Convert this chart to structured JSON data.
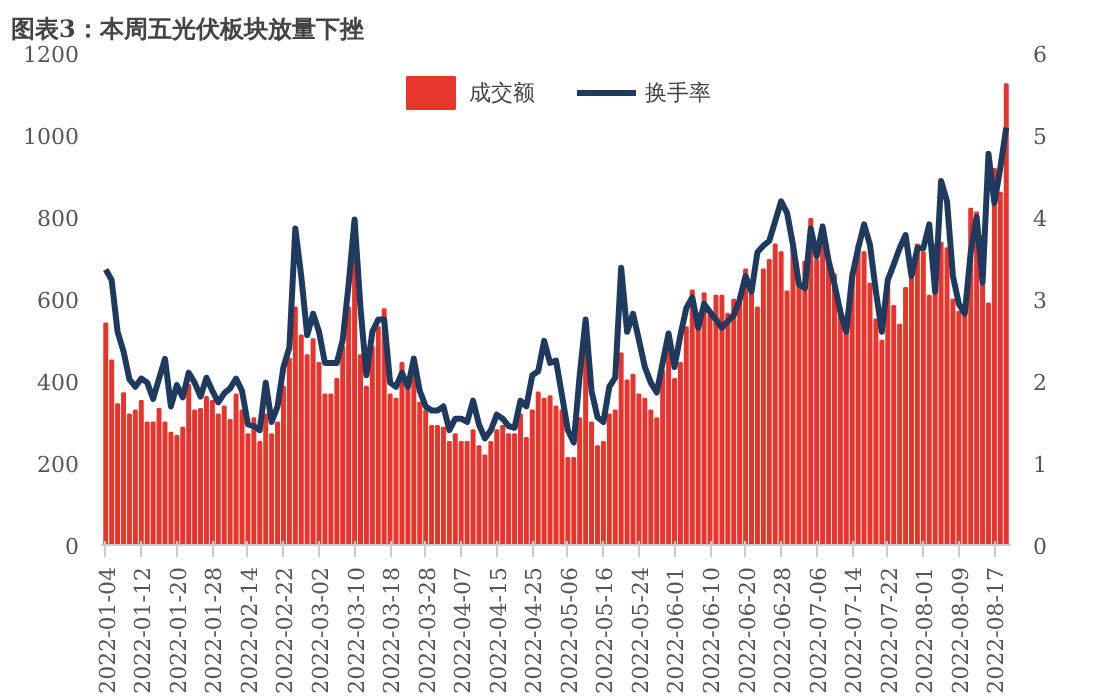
{
  "chart_data": {
    "type": "bar",
    "title": "图表3：本周五光伏板块放量下挫",
    "categories": [
      "2022-01-04",
      null,
      null,
      null,
      null,
      null,
      "2022-01-12",
      null,
      null,
      null,
      null,
      null,
      "2022-01-20",
      null,
      null,
      null,
      null,
      null,
      "2022-01-28",
      null,
      null,
      null,
      null,
      null,
      "2022-02-14",
      null,
      null,
      null,
      null,
      null,
      "2022-02-22",
      null,
      null,
      null,
      null,
      null,
      "2022-03-02",
      null,
      null,
      null,
      null,
      null,
      "2022-03-10",
      null,
      null,
      null,
      null,
      null,
      "2022-03-18",
      null,
      null,
      null,
      null,
      null,
      "2022-03-28",
      null,
      null,
      null,
      null,
      null,
      "2022-04-07",
      null,
      null,
      null,
      null,
      null,
      "2022-04-15",
      null,
      null,
      null,
      null,
      null,
      "2022-04-25",
      null,
      null,
      null,
      null,
      null,
      "2022-05-06",
      null,
      null,
      null,
      null,
      null,
      "2022-05-16",
      null,
      null,
      null,
      null,
      null,
      "2022-05-24",
      null,
      null,
      null,
      null,
      null,
      "2022-06-01",
      null,
      null,
      null,
      null,
      null,
      "2022-06-10",
      null,
      null,
      null,
      null,
      null,
      "2022-06-20",
      null,
      null,
      null,
      null,
      null,
      "2022-06-28",
      null,
      null,
      null,
      null,
      null,
      "2022-07-06",
      null,
      null,
      null,
      null,
      null,
      "2022-07-14",
      null,
      null,
      null,
      null,
      null,
      "2022-07-22",
      null,
      null,
      null,
      null,
      null,
      "2022-08-01",
      null,
      null,
      null,
      null,
      null,
      "2022-08-09",
      null,
      null,
      null,
      null,
      null,
      "2022-08-17",
      null,
      null
    ],
    "series": [
      {
        "name": "成交额",
        "color": "#e8352b",
        "values": [
          540,
          450,
          343,
          370,
          318,
          328,
          351,
          299,
          299,
          332,
          299,
          274,
          266,
          286,
          390,
          328,
          332,
          361,
          351,
          318,
          338,
          305,
          367,
          328,
          270,
          309,
          251,
          318,
          270,
          299,
          386,
          454,
          579,
          511,
          463,
          502,
          444,
          367,
          367,
          405,
          483,
          579,
          695,
          463,
          386,
          483,
          531,
          575,
          367,
          357,
          444,
          386,
          459,
          347,
          328,
          290,
          290,
          286,
          251,
          270,
          251,
          251,
          280,
          241,
          218,
          251,
          280,
          290,
          270,
          270,
          318,
          261,
          328,
          372,
          357,
          363,
          338,
          328,
          212,
          212,
          309,
          480,
          299,
          241,
          251,
          318,
          328,
          467,
          401,
          415,
          367,
          357,
          328,
          309,
          425,
          473,
          405,
          444,
          531,
          621,
          564,
          614,
          560,
          608,
          608,
          564,
          598,
          602,
          672,
          637,
          579,
          672,
          695,
          733,
          714,
          618,
          733,
          637,
          691,
          795,
          695,
          782,
          704,
          660,
          579,
          521,
          666,
          733,
          714,
          637,
          550,
          498,
          627,
          583,
          537,
          627,
          676,
          733,
          714,
          608,
          733,
          737,
          724,
          598,
          569,
          560,
          820,
          811,
          753,
          589,
          917,
          859,
          1124
        ]
      },
      {
        "name": "换手率",
        "type": "line",
        "axis": "y2",
        "color": "#1f3a5f",
        "values": [
          3.36,
          3.23,
          2.6,
          2.36,
          2.02,
          1.93,
          2.03,
          1.98,
          1.78,
          2.03,
          2.27,
          1.69,
          1.95,
          1.8,
          2.1,
          1.98,
          1.81,
          2.04,
          1.88,
          1.74,
          1.85,
          1.91,
          2.03,
          1.88,
          1.47,
          1.45,
          1.4,
          1.98,
          1.5,
          1.69,
          2.17,
          2.41,
          3.86,
          3.28,
          2.56,
          2.82,
          2.6,
          2.22,
          2.22,
          2.22,
          2.5,
          3.18,
          3.97,
          2.89,
          2.07,
          2.6,
          2.75,
          2.75,
          1.98,
          1.93,
          2.1,
          1.93,
          2.27,
          1.88,
          1.69,
          1.64,
          1.64,
          1.69,
          1.4,
          1.54,
          1.54,
          1.5,
          1.76,
          1.47,
          1.3,
          1.4,
          1.59,
          1.54,
          1.45,
          1.43,
          1.76,
          1.69,
          2.07,
          2.12,
          2.49,
          2.22,
          2.25,
          1.83,
          1.4,
          1.25,
          2.07,
          2.75,
          1.88,
          1.56,
          1.5,
          1.93,
          2.04,
          3.38,
          2.6,
          2.82,
          2.5,
          2.17,
          1.98,
          1.86,
          2.22,
          2.58,
          2.17,
          2.56,
          2.89,
          3.02,
          2.65,
          2.94,
          2.84,
          2.75,
          2.65,
          2.73,
          2.8,
          2.99,
          3.28,
          3.09,
          3.57,
          3.65,
          3.71,
          3.95,
          4.19,
          4.05,
          3.66,
          3.18,
          3.13,
          3.86,
          3.52,
          3.88,
          3.47,
          3.18,
          2.84,
          2.6,
          3.28,
          3.62,
          3.91,
          3.66,
          3.09,
          2.6,
          3.23,
          3.42,
          3.62,
          3.78,
          3.28,
          3.62,
          3.62,
          3.91,
          3.09,
          4.44,
          4.19,
          3.28,
          2.94,
          2.82,
          3.57,
          4.0,
          3.2,
          4.77,
          4.17,
          4.6,
          5.09
        ]
      }
    ],
    "ylim": [
      0,
      1200
    ],
    "yticks": [
      0,
      200,
      400,
      600,
      800,
      1000,
      1200
    ],
    "y2lim": [
      0,
      6
    ],
    "y2ticks": [
      0,
      1,
      2,
      3,
      4,
      5,
      6
    ],
    "grid": false,
    "legend": "top"
  }
}
